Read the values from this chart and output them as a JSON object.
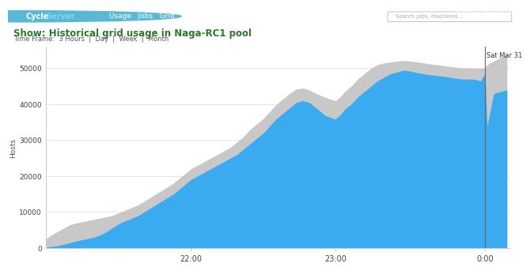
{
  "title": "Show: Historical grid usage in Naga-RC1 pool",
  "ylabel": "Hosts",
  "xlabel_ticks": [
    "22:00",
    "23:00",
    "0:00"
  ],
  "vline_label": "Sat Mar 31",
  "ylim": [
    0,
    56000
  ],
  "yticks": [
    0,
    10000,
    20000,
    30000,
    40000,
    50000
  ],
  "bg_color": "#ffffff",
  "nav_bar_color": "#2c5f8a",
  "title_color": "#2a7a2a",
  "blue_color": "#3aabf0",
  "grey_color": "#c8c8c8",
  "x_points": [
    0.0,
    0.01,
    0.025,
    0.04,
    0.055,
    0.07,
    0.09,
    0.11,
    0.13,
    0.15,
    0.17,
    0.19,
    0.21,
    0.23,
    0.25,
    0.27,
    0.29,
    0.31,
    0.33,
    0.345,
    0.36,
    0.375,
    0.39,
    0.405,
    0.42,
    0.435,
    0.45,
    0.465,
    0.48,
    0.495,
    0.51,
    0.525,
    0.54,
    0.555,
    0.57,
    0.585,
    0.6,
    0.615,
    0.625,
    0.635,
    0.645,
    0.655,
    0.66,
    0.67,
    0.68,
    0.695,
    0.71,
    0.725,
    0.74,
    0.755,
    0.77,
    0.785,
    0.8,
    0.815,
    0.83,
    0.845,
    0.86,
    0.875,
    0.89,
    0.905,
    0.92,
    0.935,
    0.95,
    0.96,
    0.97,
    0.98,
    0.99,
    1.0,
    1.005,
    1.02,
    1.035,
    1.05
  ],
  "blue_y": [
    200,
    400,
    600,
    1000,
    1500,
    2000,
    2500,
    3000,
    4000,
    5500,
    7000,
    8000,
    9000,
    10500,
    12000,
    13500,
    15000,
    17000,
    19000,
    20000,
    21000,
    22000,
    23000,
    24000,
    25000,
    26000,
    27500,
    29000,
    30500,
    32000,
    34000,
    36000,
    37500,
    39000,
    40500,
    41000,
    40500,
    39000,
    38000,
    37000,
    36500,
    36000,
    36000,
    37000,
    38500,
    40000,
    42000,
    43500,
    45000,
    46500,
    47500,
    48500,
    49000,
    49500,
    49200,
    48800,
    48500,
    48200,
    48000,
    47800,
    47500,
    47200,
    47000,
    47000,
    47000,
    46800,
    46500,
    48500,
    34000,
    43000,
    43500,
    44000
  ],
  "grey_y": [
    2500,
    3500,
    4500,
    5500,
    6500,
    7000,
    7500,
    8000,
    8500,
    9000,
    10000,
    11000,
    12000,
    13500,
    15000,
    16500,
    18000,
    20000,
    22000,
    23000,
    24000,
    25000,
    26000,
    27000,
    28000,
    29500,
    31000,
    33000,
    34500,
    36000,
    38000,
    40000,
    41500,
    43000,
    44200,
    44500,
    44000,
    43000,
    42500,
    42000,
    41500,
    41200,
    41000,
    42000,
    43500,
    45000,
    47000,
    48500,
    50000,
    51000,
    51500,
    51800,
    52000,
    52200,
    52000,
    51800,
    51500,
    51200,
    51000,
    50800,
    50500,
    50300,
    50100,
    50100,
    50000,
    50000,
    50000,
    50000,
    51000,
    52000,
    53000,
    54000
  ]
}
